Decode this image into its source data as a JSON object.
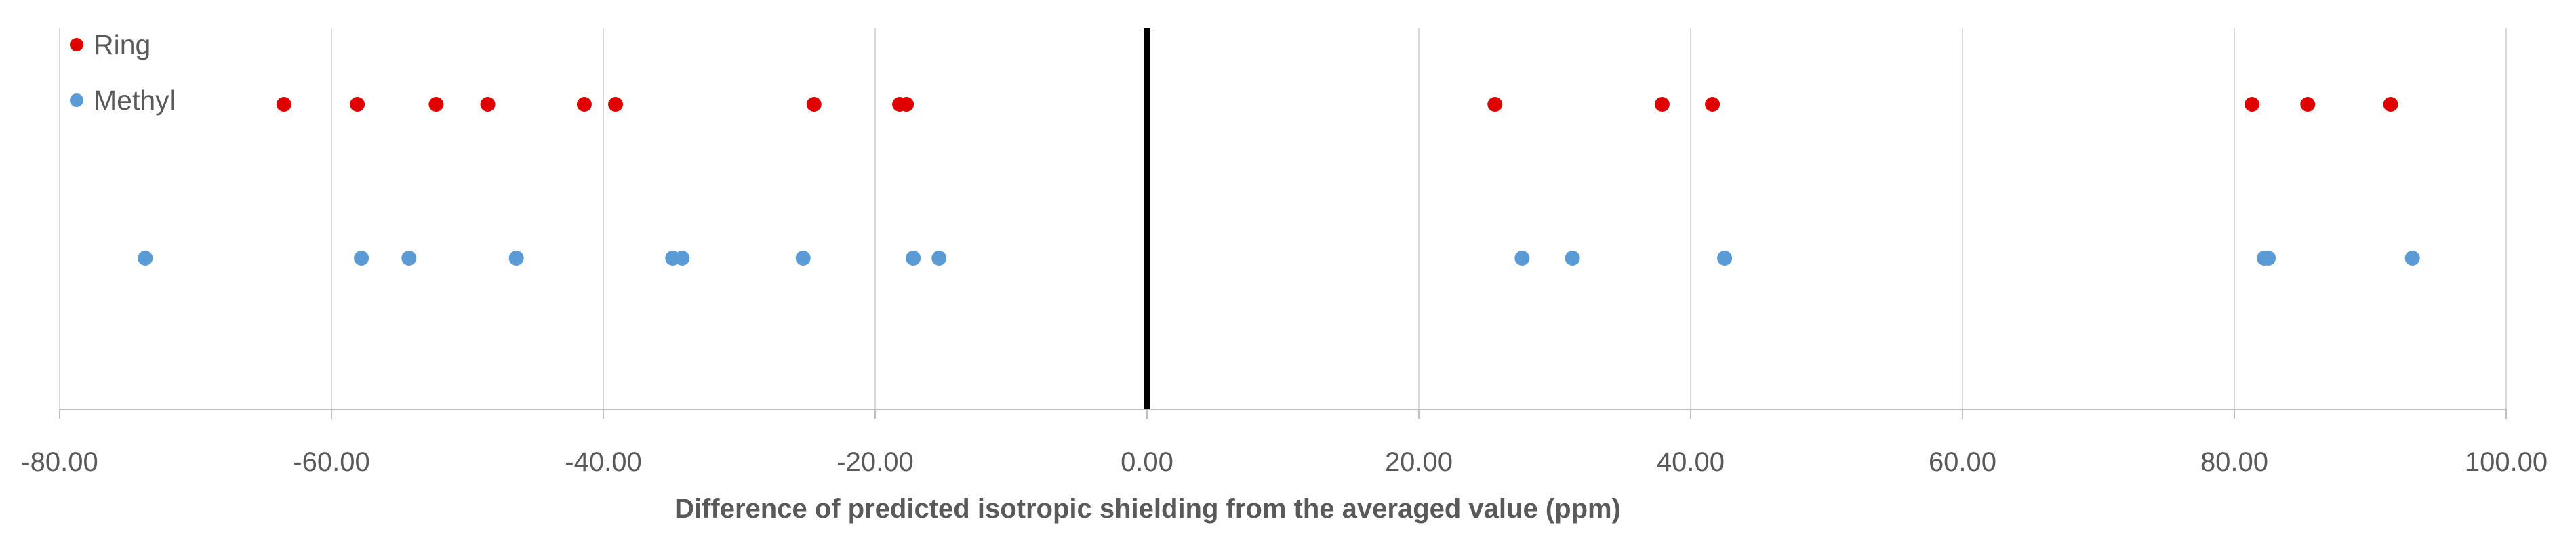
{
  "chart_data": {
    "type": "scatter",
    "title": "",
    "xlabel": "Difference of predicted isotropic shielding from the averaged value (ppm)",
    "ylabel": "",
    "xlim": [
      -80,
      100
    ],
    "xticks": [
      -80,
      -60,
      -40,
      -20,
      0,
      20,
      40,
      60,
      80,
      100
    ],
    "xtick_labels": [
      "-80.00",
      "-60.00",
      "-40.00",
      "-20.00",
      "0.00",
      "20.00",
      "40.00",
      "60.00",
      "80.00",
      "100.00"
    ],
    "grid": "vertical",
    "reference_line_x": 0,
    "legend": {
      "position": "top-left"
    },
    "series": [
      {
        "name": "Ring",
        "color": "#e00000",
        "row": 1,
        "x": [
          -63.5,
          -58.1,
          -52.3,
          -48.5,
          -41.4,
          -39.1,
          -24.5,
          -18.2,
          -17.7,
          25.6,
          37.9,
          41.6,
          81.3,
          85.4,
          91.5
        ]
      },
      {
        "name": "Methyl",
        "color": "#5b9bd5",
        "row": 2,
        "x": [
          -73.7,
          -57.8,
          -54.3,
          -46.4,
          -34.9,
          -34.2,
          -25.3,
          -17.2,
          -15.3,
          27.6,
          31.3,
          42.5,
          82.2,
          82.5,
          93.1
        ]
      }
    ]
  }
}
